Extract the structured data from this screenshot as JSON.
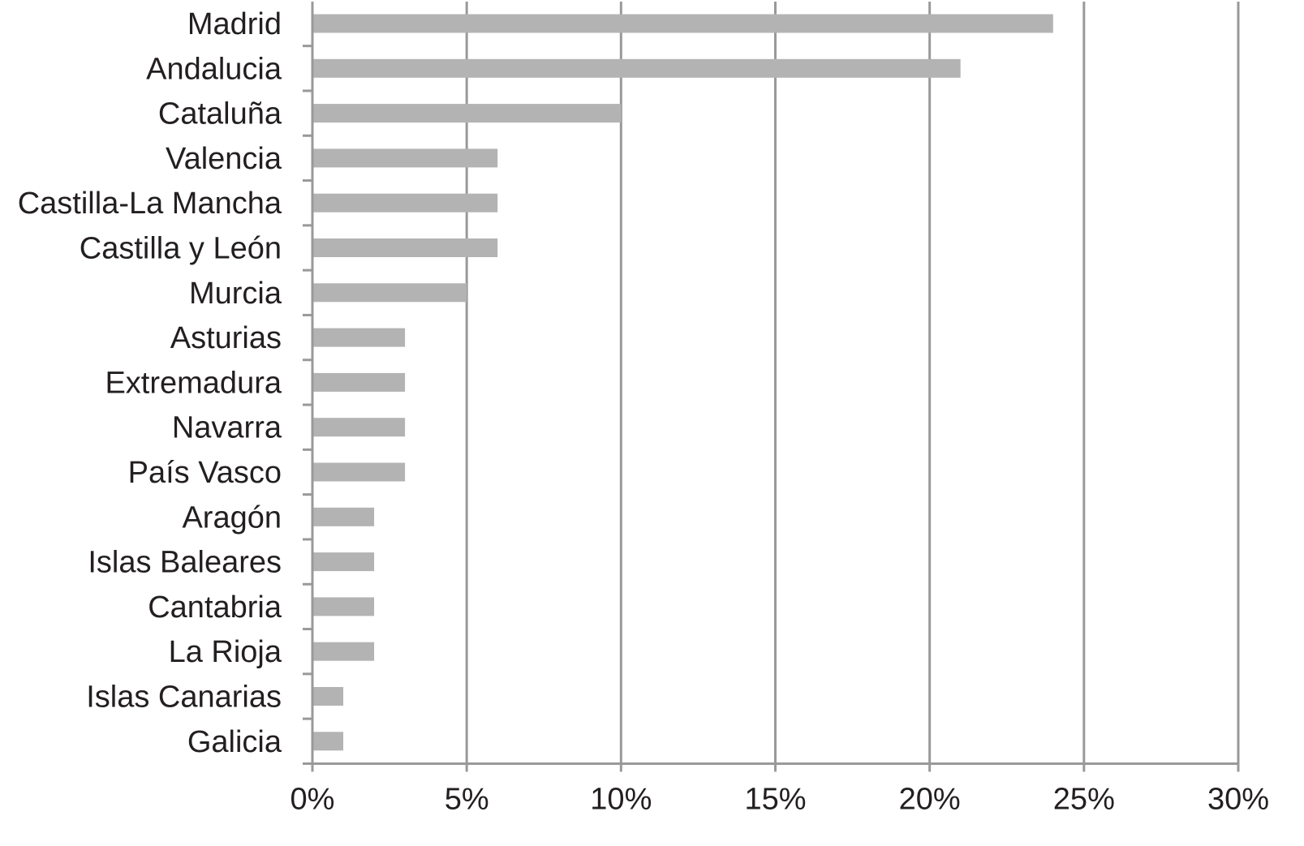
{
  "colors": {
    "bar": "#b3b3b3",
    "grid": "#999999",
    "axis": "#999999",
    "text": "#231f20",
    "background": "#ffffff"
  },
  "chart_data": {
    "type": "bar",
    "orientation": "horizontal",
    "categories": [
      "Madrid",
      "Andalucia",
      "Cataluña",
      "Valencia",
      "Castilla-La Mancha",
      "Castilla y León",
      "Murcia",
      "Asturias",
      "Extremadura",
      "Navarra",
      "País Vasco",
      "Aragón",
      "Islas Baleares",
      "Cantabria",
      "La Rioja",
      "Islas Canarias",
      "Galicia"
    ],
    "values": [
      24,
      21,
      10,
      6,
      6,
      6,
      5,
      3,
      3,
      3,
      3,
      2,
      2,
      2,
      2,
      1,
      1
    ],
    "value_unit": "%",
    "xlim": [
      0,
      30
    ],
    "xticks": [
      0,
      5,
      10,
      15,
      20,
      25,
      30
    ],
    "xtick_labels": [
      "0%",
      "5%",
      "10%",
      "15%",
      "20%",
      "25%",
      "30%"
    ],
    "grid": "vertical",
    "legend": "none",
    "title": "",
    "xlabel": "",
    "ylabel": ""
  }
}
